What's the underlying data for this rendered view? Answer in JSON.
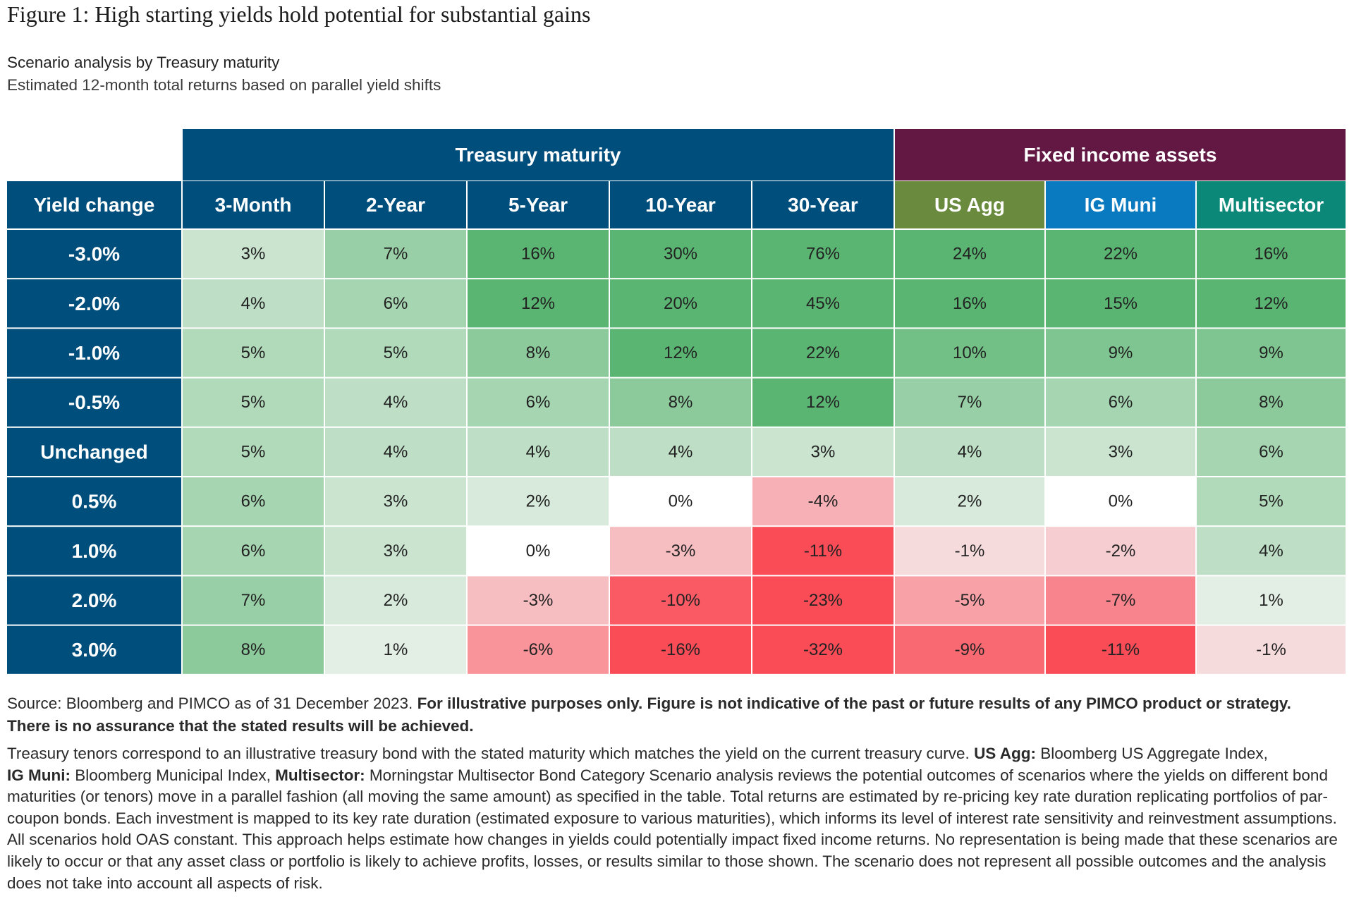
{
  "title": "Figure 1: High starting yields hold potential for substantial gains",
  "subtitle": "Scenario analysis by Treasury maturity",
  "subtitle2": "Estimated 12-month total returns based on parallel yield shifts",
  "colors": {
    "header_blue": "#004e7c",
    "header_purple": "#631844",
    "us_agg": "#6a8a3e",
    "ig_muni": "#0a7ac0",
    "multisector": "#0c8878",
    "strong_green": "#5ab572",
    "light_green": "#e3efe5",
    "strong_red": "#fa4c57",
    "light_red": "#f6dbdd"
  },
  "chart_data": {
    "type": "table",
    "group_headers": [
      {
        "label": "Treasury maturity",
        "span": 5
      },
      {
        "label": "Fixed income assets",
        "span": 3
      }
    ],
    "row_header_label": "Yield change",
    "columns": [
      "3-Month",
      "2-Year",
      "5-Year",
      "10-Year",
      "30-Year",
      "US Agg",
      "IG Muni",
      "Multisector"
    ],
    "rows": [
      {
        "label": "-3.0%",
        "values": [
          3,
          7,
          16,
          30,
          76,
          24,
          22,
          16
        ]
      },
      {
        "label": "-2.0%",
        "values": [
          4,
          6,
          12,
          20,
          45,
          16,
          15,
          12
        ]
      },
      {
        "label": "-1.0%",
        "values": [
          5,
          5,
          8,
          12,
          22,
          10,
          9,
          9
        ]
      },
      {
        "label": "-0.5%",
        "values": [
          5,
          4,
          6,
          8,
          12,
          7,
          6,
          8
        ]
      },
      {
        "label": "Unchanged",
        "values": [
          5,
          4,
          4,
          4,
          3,
          4,
          3,
          6
        ]
      },
      {
        "label": "0.5%",
        "values": [
          6,
          3,
          2,
          0,
          -4,
          2,
          0,
          5
        ]
      },
      {
        "label": "1.0%",
        "values": [
          6,
          3,
          0,
          -3,
          -11,
          -1,
          -2,
          4
        ]
      },
      {
        "label": "2.0%",
        "values": [
          7,
          2,
          -3,
          -10,
          -23,
          -5,
          -7,
          1
        ]
      },
      {
        "label": "3.0%",
        "values": [
          8,
          1,
          -6,
          -16,
          -32,
          -9,
          -11,
          -1
        ]
      }
    ],
    "value_suffix": "%"
  },
  "footer": {
    "source_prefix": "Source: Bloomberg and PIMCO as of 31 December 2023. ",
    "source_bold": "For illustrative purposes only. Figure is not indicative of the past or future results of any PIMCO product or strategy. There is no assurance that the stated results will be achieved.",
    "notes_1": "Treasury tenors correspond to an illustrative treasury bond with the stated maturity which matches the yield on the current treasury curve. ",
    "us_agg_label": "US Agg:",
    "us_agg_text": " Bloomberg US Aggregate Index,",
    "ig_muni_label": "IG Muni:",
    "ig_muni_text": " Bloomberg Municipal Index, ",
    "multisector_label": "Multisector:",
    "notes_2": " Morningstar Multisector Bond Category Scenario analysis reviews the potential outcomes of scenarios where the yields on different bond maturities (or tenors) move in a parallel fashion (all moving the same amount) as specified in the table. Total returns are estimated by re-pricing key rate duration replicating portfolios of par-coupon bonds. Each investment is mapped to its key rate duration (estimated exposure to various maturities), which informs its level of interest rate sensitivity and reinvestment assumptions. All scenarios hold OAS constant. This approach helps estimate how changes in yields could potentially impact fixed income returns. No representation is being made that these scenarios are likely to occur or that any asset class or portfolio is likely to achieve profits, losses, or results similar to those shown. The scenario does not represent all possible outcomes and the analysis does not take into account all aspects of risk."
  }
}
